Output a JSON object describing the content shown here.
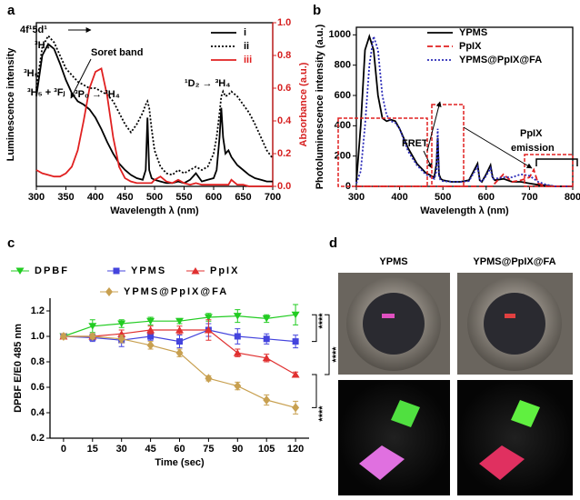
{
  "panel_d": {
    "label": "d",
    "columns": [
      "YPMS",
      "YPMS@PpIX@FA"
    ]
  },
  "chart_data": [
    {
      "type": "line",
      "label": "a",
      "xlabel": "Wavelength λ (nm)",
      "ylabel": "Luminescence intensity",
      "y2label": "Absorbance (a.u.)",
      "y2color": "#d62020",
      "annotations": [
        "4f¹5d¹",
        "³H₄",
        "³H₅",
        "³H₅ + ³Fⱼ",
        "³P₀ → ³H₄",
        "Soret band",
        "¹D₂ → ³H₄"
      ],
      "legend": "upper right",
      "xlim": [
        300,
        700
      ],
      "xticks": [
        300,
        350,
        400,
        450,
        500,
        550,
        600,
        650,
        700
      ],
      "ylim": [
        0,
        1
      ],
      "y2lim": [
        0,
        1
      ],
      "y2ticks": [
        {
          "value": 0,
          "label": "0.0"
        },
        0.2,
        0.4,
        0.6,
        0.8,
        {
          "value": 1,
          "label": "1.0"
        }
      ],
      "x": [
        300,
        310,
        320,
        330,
        340,
        350,
        360,
        370,
        380,
        390,
        400,
        410,
        420,
        430,
        440,
        450,
        460,
        470,
        480,
        485,
        488,
        491,
        495,
        500,
        510,
        520,
        530,
        540,
        550,
        560,
        570,
        580,
        590,
        600,
        605,
        610,
        613,
        616,
        620,
        625,
        630,
        640,
        650,
        660,
        670,
        680,
        690,
        700
      ],
      "series": [
        {
          "name": "i",
          "color": "#000000",
          "line_style": "solid",
          "values": [
            0.55,
            0.8,
            0.87,
            0.84,
            0.75,
            0.65,
            0.57,
            0.52,
            0.5,
            0.47,
            0.42,
            0.35,
            0.27,
            0.2,
            0.14,
            0.1,
            0.07,
            0.05,
            0.04,
            0.1,
            0.42,
            0.1,
            0.05,
            0.04,
            0.03,
            0.02,
            0.02,
            0.03,
            0.02,
            0.04,
            0.08,
            0.03,
            0.04,
            0.05,
            0.1,
            0.3,
            0.48,
            0.3,
            0.2,
            0.22,
            0.18,
            0.13,
            0.1,
            0.07,
            0.05,
            0.04,
            0.03,
            0.03
          ]
        },
        {
          "name": "ii",
          "color": "#000000",
          "line_style": "dotted",
          "values": [
            0.6,
            0.85,
            0.92,
            0.88,
            0.8,
            0.72,
            0.68,
            0.64,
            0.62,
            0.6,
            0.6,
            0.58,
            0.56,
            0.52,
            0.45,
            0.38,
            0.33,
            0.38,
            0.45,
            0.5,
            0.52,
            0.48,
            0.35,
            0.22,
            0.12,
            0.08,
            0.07,
            0.1,
            0.08,
            0.1,
            0.12,
            0.1,
            0.12,
            0.2,
            0.3,
            0.45,
            0.55,
            0.58,
            0.55,
            0.56,
            0.58,
            0.55,
            0.5,
            0.45,
            0.38,
            0.3,
            0.22,
            0.17
          ]
        },
        {
          "name": "iii",
          "color": "#e02020",
          "line_style": "solid",
          "axis": "y2",
          "values": [
            0.1,
            0.08,
            0.07,
            0.06,
            0.06,
            0.08,
            0.12,
            0.22,
            0.4,
            0.6,
            0.7,
            0.72,
            0.55,
            0.3,
            0.12,
            0.05,
            0.03,
            0.02,
            0.02,
            0.02,
            0.02,
            0.02,
            0.02,
            0.04,
            0.06,
            0.03,
            0.02,
            0.04,
            0.02,
            0.01,
            0.02,
            0.01,
            0.01,
            0.01,
            0.01,
            0.01,
            0.01,
            0.01,
            0.01,
            0.01,
            0.04,
            0.01,
            0.01,
            0,
            0,
            0,
            0,
            0
          ]
        }
      ]
    },
    {
      "type": "line",
      "label": "b",
      "xlabel": "Wavelength λ (nm)",
      "ylabel": "Photoluminescence intensity (a.u.)",
      "annotations": [
        "FRET",
        "PpIX",
        "emission"
      ],
      "legend": "upper right",
      "xlim": [
        300,
        800
      ],
      "xticks": [
        300,
        400,
        500,
        600,
        700,
        800
      ],
      "ylim": [
        0,
        1050
      ],
      "yticks": [
        0,
        200,
        400,
        600,
        800,
        1000
      ],
      "x": [
        300,
        310,
        320,
        330,
        340,
        350,
        360,
        370,
        380,
        390,
        400,
        420,
        440,
        460,
        480,
        485,
        488,
        491,
        495,
        500,
        520,
        540,
        560,
        580,
        585,
        590,
        600,
        610,
        615,
        620,
        640,
        660,
        680,
        700,
        710,
        720,
        740,
        760,
        780,
        800
      ],
      "series": [
        {
          "name": "YPMS",
          "color": "#000000",
          "line_style": "solid",
          "values": [
            30,
            400,
            900,
            990,
            900,
            600,
            450,
            430,
            440,
            430,
            380,
            250,
            150,
            90,
            60,
            150,
            320,
            80,
            50,
            40,
            30,
            30,
            40,
            150,
            40,
            30,
            80,
            140,
            60,
            40,
            50,
            30,
            30,
            20,
            15,
            10,
            5,
            0,
            0,
            0
          ]
        },
        {
          "name": "PpIX",
          "color": "#e02020",
          "line_style": "dashed",
          "values": [
            0,
            0,
            0,
            0,
            0,
            0,
            0,
            0,
            0,
            0,
            0,
            0,
            0,
            0,
            0,
            0,
            0,
            0,
            0,
            0,
            0,
            0,
            0,
            0,
            0,
            0,
            0,
            0,
            0,
            20,
            80,
            30,
            40,
            60,
            110,
            20,
            0,
            0,
            0,
            0
          ]
        },
        {
          "name": "YPMS@PpIX@FA",
          "color": "#2a2ab8",
          "line_style": "dotted",
          "values": [
            20,
            100,
            400,
            800,
            990,
            900,
            600,
            470,
            430,
            420,
            380,
            230,
            140,
            80,
            50,
            100,
            380,
            60,
            40,
            35,
            30,
            30,
            35,
            130,
            40,
            30,
            70,
            120,
            50,
            50,
            60,
            60,
            80,
            70,
            50,
            30,
            10,
            0,
            0,
            0
          ]
        }
      ]
    },
    {
      "type": "line",
      "label": "c",
      "xlabel": "Time (sec)",
      "ylabel": "DPBF E/E0 485 nm",
      "annotations": [
        "****",
        "****",
        "****"
      ],
      "legend": "top",
      "xlim": [
        -7,
        127
      ],
      "xticks": [
        0,
        15,
        30,
        45,
        60,
        75,
        90,
        105,
        120
      ],
      "ylim": [
        0.2,
        1.3
      ],
      "yticks": [
        0.2,
        0.4,
        0.6,
        0.8,
        {
          "value": 1,
          "label": "1.0"
        },
        1.2
      ],
      "x": [
        0,
        15,
        30,
        45,
        60,
        75,
        90,
        105,
        120
      ],
      "series": [
        {
          "name": "DPBF",
          "color": "#22cc22",
          "marker": "triangle-down",
          "values": [
            1.0,
            1.08,
            1.1,
            1.12,
            1.12,
            1.15,
            1.16,
            1.14,
            1.17
          ],
          "errors": [
            0.02,
            0.05,
            0.03,
            0.03,
            0.02,
            0.03,
            0.05,
            0.03,
            0.08
          ]
        },
        {
          "name": "YPMS",
          "color": "#4444dd",
          "marker": "square",
          "values": [
            1.0,
            0.99,
            0.97,
            1.0,
            0.96,
            1.05,
            1.0,
            0.98,
            0.96
          ],
          "errors": [
            0.02,
            0.03,
            0.05,
            0.03,
            0.05,
            0.05,
            0.06,
            0.04,
            0.05
          ]
        },
        {
          "name": "PpIX",
          "color": "#e03030",
          "marker": "triangle-up",
          "values": [
            1.0,
            1.0,
            1.02,
            1.05,
            1.05,
            1.05,
            0.87,
            0.83,
            0.7
          ],
          "errors": [
            0.02,
            0.02,
            0.03,
            0.03,
            0.03,
            0.08,
            0.03,
            0.03,
            0.02
          ]
        },
        {
          "name": "YPMS@PpIX@FA",
          "color": "#c8a050",
          "marker": "diamond",
          "values": [
            1.0,
            1.0,
            0.98,
            0.93,
            0.87,
            0.67,
            0.61,
            0.5,
            0.44
          ],
          "errors": [
            0.02,
            0.02,
            0.03,
            0.03,
            0.03,
            0.02,
            0.03,
            0.04,
            0.05
          ]
        }
      ]
    }
  ]
}
